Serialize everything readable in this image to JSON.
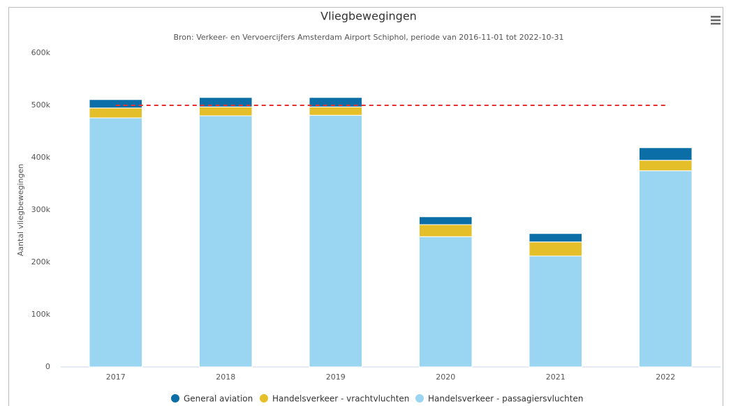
{
  "chart_data": {
    "type": "stacked_bar",
    "title": "Vliegbewegingen",
    "subtitle": "Bron: Verkeer- en Vervoercijfers Amsterdam Airport Schiphol, periode van 2016-11-01 tot 2022-10-31",
    "y_label": "Aantal vliegbewegingen",
    "categories": [
      "2017",
      "2018",
      "2019",
      "2020",
      "2021",
      "2022"
    ],
    "series": [
      {
        "name": "General aviation",
        "color": "#0b6ea6",
        "values": [
          16000,
          18000,
          18000,
          15000,
          16000,
          24000
        ]
      },
      {
        "name": "Handelsverkeer - vrachtvluchten",
        "color": "#e5bf2a",
        "values": [
          19000,
          17000,
          16000,
          23000,
          27000,
          20000
        ]
      },
      {
        "name": "Handelsverkeer - passagiersvluchten",
        "color": "#9ad5f2",
        "values": [
          476000,
          480000,
          481000,
          249000,
          212000,
          375000
        ]
      }
    ],
    "reference_line": {
      "value": 500000,
      "color": "#e8302e"
    },
    "ylim": [
      0,
      600000
    ],
    "yticks": [
      0,
      {
        "value": 100000,
        "label": "100k"
      },
      {
        "value": 200000,
        "label": "200k"
      },
      {
        "value": 300000,
        "label": "300k"
      },
      {
        "value": 400000,
        "label": "400k"
      },
      {
        "value": 500000,
        "label": "500k"
      },
      {
        "value": 600000,
        "label": "600k"
      }
    ],
    "legend": "bottom"
  }
}
